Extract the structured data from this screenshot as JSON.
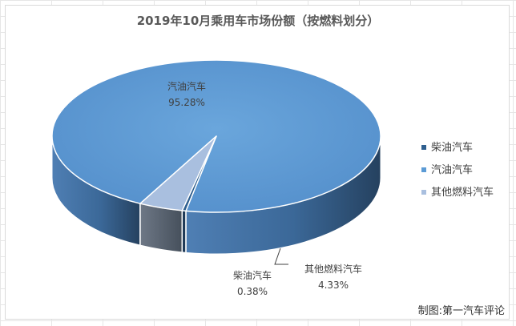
{
  "chart_data": {
    "type": "pie",
    "title": "2019年10月乘用车市场份额（按燃料划分）",
    "slices": [
      {
        "label": "柴油汽车",
        "value": 0.38,
        "value_label": "0.38%",
        "color": "#2f5f8f"
      },
      {
        "label": "汽油汽车",
        "value": 95.28,
        "value_label": "95.28%",
        "color": "#5b9bd5"
      },
      {
        "label": "其他燃料汽车",
        "value": 4.33,
        "value_label": "4.33%",
        "color": "#a9bfdf"
      }
    ],
    "legend": {
      "placement": "right",
      "entries": [
        "柴油汽车",
        "汽油汽车",
        "其他燃料汽车"
      ]
    },
    "style": "3d-pie"
  },
  "credit": "制图:第一汽车评论"
}
